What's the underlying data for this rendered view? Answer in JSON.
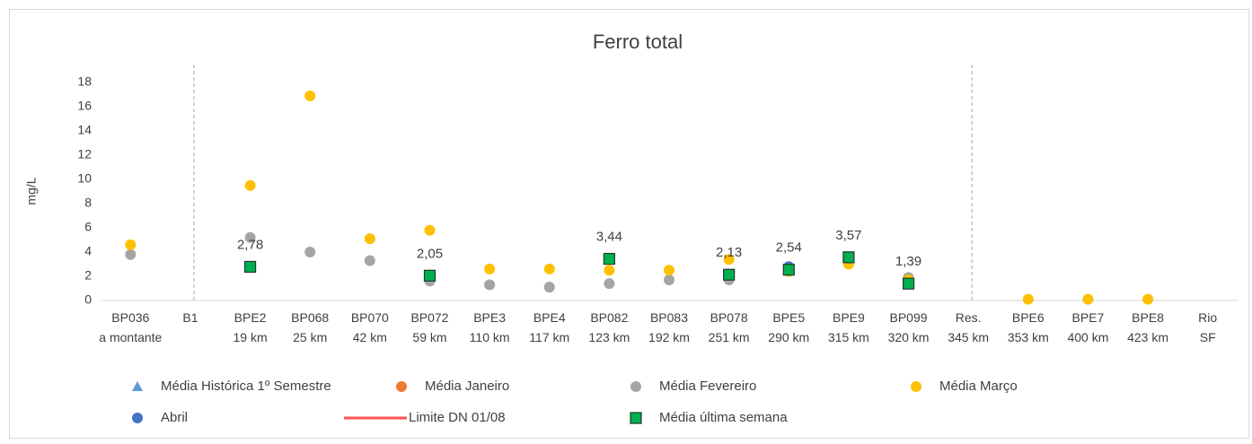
{
  "chart_data": {
    "type": "scatter",
    "title": "Ferro total",
    "y_label": "mg/L",
    "categories": [
      [
        "BP036",
        "a montante"
      ],
      [
        "B1"
      ],
      [
        "BPE2",
        "19 km"
      ],
      [
        "BP068",
        "25 km"
      ],
      [
        "BP070",
        "42 km"
      ],
      [
        "BP072",
        "59 km"
      ],
      [
        "BPE3",
        "110 km"
      ],
      [
        "BPE4",
        "117 km"
      ],
      [
        "BP082",
        "123 km"
      ],
      [
        "BP083",
        "192 km"
      ],
      [
        "BP078",
        "251 km"
      ],
      [
        "BPE5",
        "290 km"
      ],
      [
        "BPE9",
        "315 km"
      ],
      [
        "BP099",
        "320 km"
      ],
      [
        "Res.",
        "345 km"
      ],
      [
        "BPE6",
        "353 km"
      ],
      [
        "BPE7",
        "400 km"
      ],
      [
        "BPE8",
        "423 km"
      ],
      [
        "Rio",
        "SF"
      ]
    ],
    "series": [
      {
        "name": "Média Histórica 1º Semestre",
        "color": "#5b9bd5",
        "marker": "triangle",
        "values": [
          null,
          null,
          null,
          null,
          null,
          null,
          null,
          null,
          null,
          null,
          null,
          null,
          null,
          null,
          null,
          null,
          null,
          null,
          null
        ]
      },
      {
        "name": "Média Janeiro",
        "color": "#ed7d31",
        "marker": "circle",
        "values": [
          null,
          null,
          null,
          null,
          null,
          null,
          null,
          null,
          null,
          null,
          null,
          null,
          null,
          null,
          null,
          null,
          null,
          null,
          null
        ]
      },
      {
        "name": "Média Fevereiro",
        "color": "#a5a5a5",
        "marker": "circle",
        "values": [
          3.8,
          null,
          5.2,
          4.0,
          3.3,
          1.6,
          1.3,
          1.1,
          1.4,
          1.7,
          1.7,
          null,
          null,
          1.9,
          null,
          null,
          null,
          null,
          null
        ]
      },
      {
        "name": "Média Março",
        "color": "#ffc000",
        "marker": "circle",
        "values": [
          4.6,
          null,
          9.5,
          16.9,
          5.1,
          5.8,
          2.6,
          2.6,
          2.5,
          2.5,
          3.4,
          2.4,
          3.0,
          1.7,
          null,
          0.1,
          0.1,
          0.1,
          null
        ]
      },
      {
        "name": "Abril",
        "color": "#4472c4",
        "marker": "circle",
        "values": [
          null,
          null,
          null,
          null,
          null,
          null,
          null,
          null,
          null,
          null,
          null,
          2.8,
          3.5,
          null,
          null,
          null,
          null,
          null,
          null
        ]
      },
      {
        "name": "Limite DN 01/08",
        "color": "#ff5050",
        "marker": "line",
        "values": [
          null,
          null,
          null,
          null,
          null,
          null,
          null,
          null,
          null,
          null,
          null,
          null,
          null,
          null,
          null,
          null,
          null,
          null,
          null
        ]
      },
      {
        "name": "Média última semana",
        "color": "#00b050",
        "marker": "square",
        "values": [
          null,
          null,
          2.78,
          null,
          null,
          2.05,
          null,
          null,
          3.44,
          null,
          2.13,
          2.54,
          3.57,
          1.39,
          null,
          null,
          null,
          null,
          null
        ],
        "value_labels": [
          null,
          null,
          "2,78",
          null,
          null,
          "2,05",
          null,
          null,
          "3,44",
          null,
          "2,13",
          "2,54",
          "3,57",
          "1,39",
          null,
          null,
          null,
          null,
          null
        ]
      }
    ],
    "ylim": [
      0,
      18
    ],
    "yticks": [
      0,
      2,
      4,
      6,
      8,
      10,
      12,
      14,
      16,
      18
    ],
    "grid": false
  }
}
